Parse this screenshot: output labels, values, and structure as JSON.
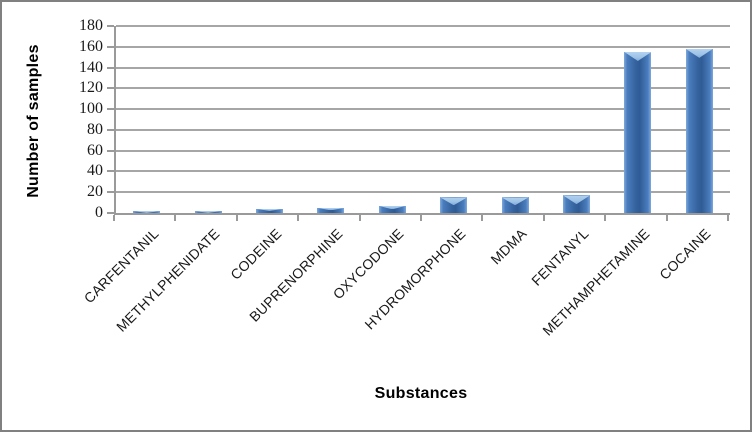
{
  "figure": {
    "background": "#ffffff",
    "border_color": "#808080"
  },
  "chart_data": {
    "type": "bar",
    "title": "",
    "categories": [
      "CARFENTANIL",
      "METHYLPHENIDATE",
      "CODEINE",
      "BUPRENORPHINE",
      "OXYCODONE",
      "HYDROMORPHONE",
      "MDMA",
      "FENTANYL",
      "METHAMPHETAMINE",
      "COCAINE"
    ],
    "values": [
      2,
      2,
      4,
      5,
      7,
      15,
      15,
      17,
      155,
      158
    ],
    "xlabel": "Substances",
    "ylabel": "Number of samples",
    "ylim": [
      0,
      180
    ],
    "ytick_step": 20,
    "yticks": [
      0,
      20,
      40,
      60,
      80,
      100,
      120,
      140,
      160,
      180
    ],
    "grid": true,
    "legend": "none",
    "bar_colors": {
      "edge": "#7fa9dd",
      "mid": "#4a7dbd",
      "dark": "#2f5b95",
      "cap": "#9dc3e6"
    },
    "grid_color": "#a6a6a6",
    "axis_color": "#9a9a9a",
    "tick_label_color": "#1a1a1a"
  }
}
